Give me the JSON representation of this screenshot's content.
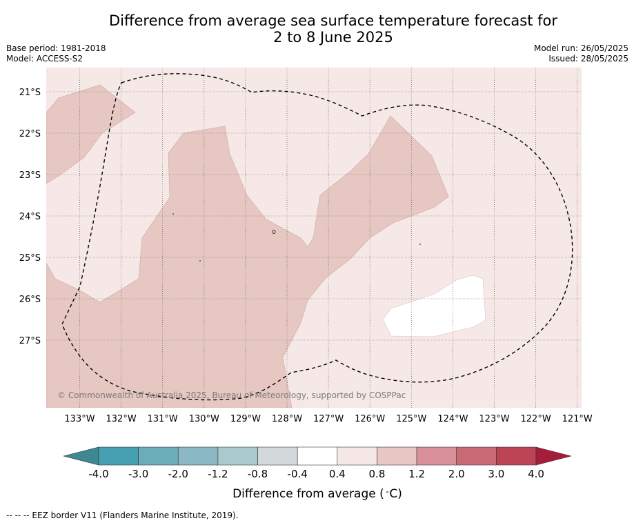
{
  "title": {
    "line1": "Difference from average sea surface temperature forecast for",
    "line2": "2 to 8 June 2025"
  },
  "meta_left": {
    "base_period": "Base period: 1981-2018",
    "model": "Model: ACCESS-S2"
  },
  "meta_right": {
    "model_run": "Model run: 26/05/2025",
    "issued": "Issued: 28/05/2025"
  },
  "map": {
    "lat_labels": [
      "21°S",
      "22°S",
      "23°S",
      "24°S",
      "25°S",
      "26°S",
      "27°S"
    ],
    "lon_labels": [
      "133°W",
      "132°W",
      "131°W",
      "130°W",
      "129°W",
      "128°W",
      "127°W",
      "126°W",
      "125°W",
      "124°W",
      "123°W",
      "122°W",
      "121°W"
    ],
    "copyright": "© Commonwealth of Australia 2025, Bureau of Meteorology, supported by COSPPac",
    "colors": {
      "background_anomaly": "#f5e8e6",
      "anomaly_0_8_to_1_2": "#e7c7c2",
      "anomaly_neg0_4_to_0_4": "#ffffff"
    }
  },
  "colorbar": {
    "tick_labels": [
      "-4.0",
      "-3.0",
      "-2.0",
      "-1.2",
      "-0.8",
      "-0.4",
      "0.4",
      "0.8",
      "1.2",
      "2.0",
      "3.0",
      "4.0"
    ],
    "colors": [
      "#3f8892",
      "#45a0b1",
      "#6cadba",
      "#8ab8c3",
      "#a9c9ce",
      "#d3d9db",
      "#ffffff",
      "#f5e8e6",
      "#e7c7c2",
      "#d88f97",
      "#ca6a75",
      "#bd4455",
      "#a51d3b"
    ],
    "label": "Difference from average ($^\\circ$C)",
    "label_text": "Difference from average (",
    "label_unit": "C)"
  },
  "footnote": "--  --  -- EEZ border V11 (Flanders Marine Institute, 2019)."
}
